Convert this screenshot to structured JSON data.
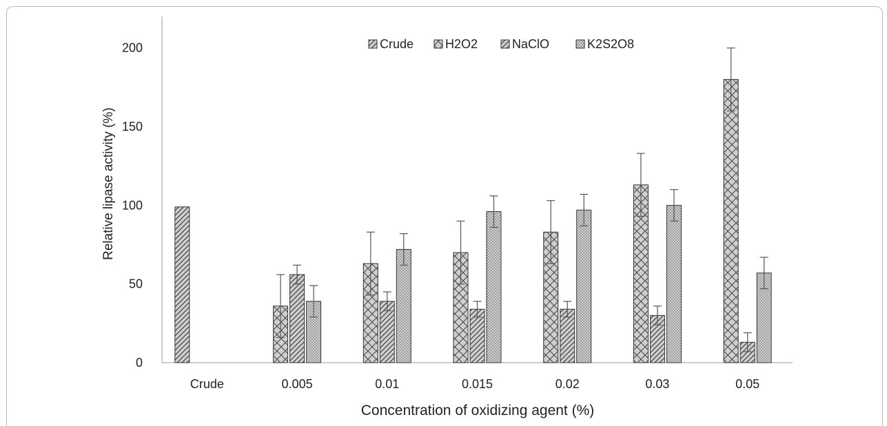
{
  "chart_data": {
    "type": "bar",
    "title": "",
    "xlabel": "Concentration of oxidizing agent (%)",
    "ylabel": "Relative lipase activity (%)",
    "ylim": [
      0,
      220
    ],
    "yticks": [
      0,
      50,
      100,
      150,
      200
    ],
    "grid": false,
    "legend_position": "top-center",
    "categories": [
      "Crude",
      "0.005",
      "0.01",
      "0.015",
      "0.02",
      "0.03",
      "0.05"
    ],
    "series": [
      {
        "name": "Crude",
        "pattern": "diagonal-hatch",
        "values": [
          99,
          null,
          null,
          null,
          null,
          null,
          null
        ],
        "errors": [
          0,
          null,
          null,
          null,
          null,
          null,
          null
        ]
      },
      {
        "name": "H2O2",
        "pattern": "crosshatch",
        "values": [
          null,
          36,
          63,
          70,
          83,
          113,
          180
        ],
        "errors": [
          null,
          20,
          20,
          20,
          20,
          20,
          20
        ]
      },
      {
        "name": "NaClO",
        "pattern": "diagonal-hatch",
        "values": [
          null,
          56,
          39,
          34,
          34,
          30,
          13
        ],
        "errors": [
          null,
          6,
          6,
          5,
          5,
          6,
          6
        ]
      },
      {
        "name": "K2S2O8",
        "pattern": "dots",
        "values": [
          null,
          39,
          72,
          96,
          97,
          100,
          57
        ],
        "errors": [
          null,
          10,
          10,
          10,
          10,
          10,
          10
        ]
      }
    ],
    "colors": {
      "fill": "#cfcfcf",
      "stroke": "#333333",
      "pattern": "#444444"
    }
  }
}
